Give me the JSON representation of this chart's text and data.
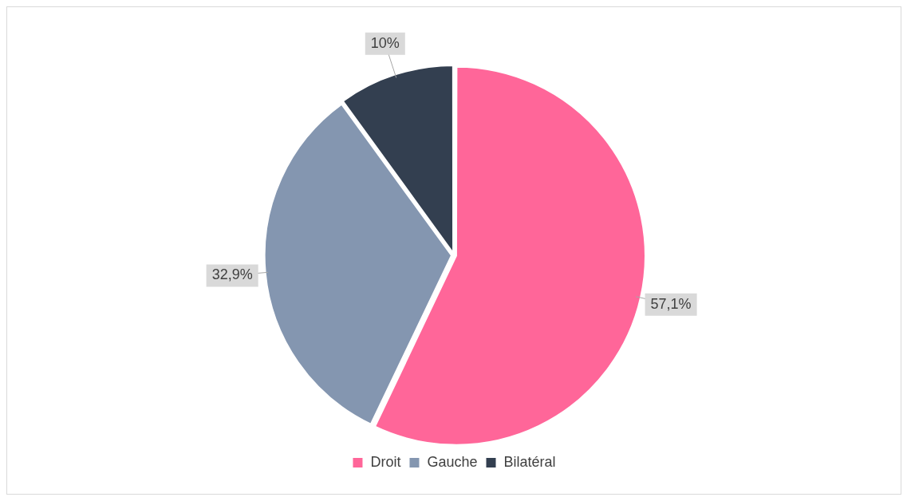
{
  "chart_data": {
    "type": "pie",
    "categories": [
      "Droit",
      "Gauche",
      "Bilatéral"
    ],
    "values": [
      57.1,
      32.9,
      10
    ],
    "colors": [
      "#ff6699",
      "#8496b0",
      "#333f50"
    ],
    "value_labels": [
      "57,1%",
      "32,9%",
      "10%"
    ],
    "legend": "bottom"
  }
}
